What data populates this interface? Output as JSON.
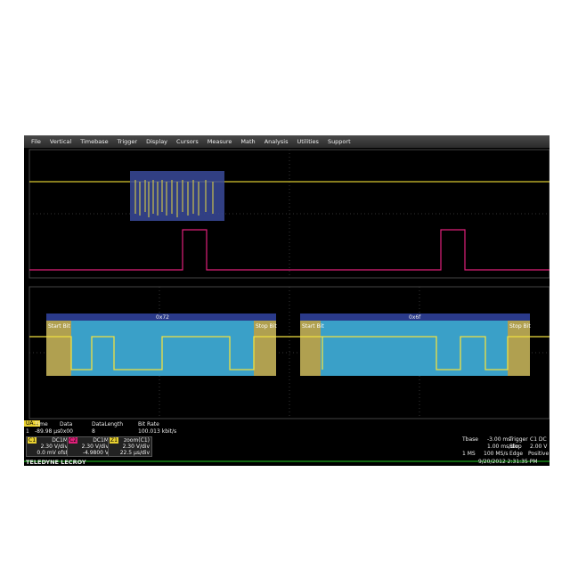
{
  "menu": [
    "File",
    "Vertical",
    "Timebase",
    "Trigger",
    "Display",
    "Cursors",
    "Measure",
    "Math",
    "Analysis",
    "Utilities",
    "Support"
  ],
  "decode": {
    "bytes": [
      "0x72",
      "0x6f"
    ],
    "start_bit": "Start Bit",
    "stop_bit": "Stop Bit"
  },
  "table": {
    "tab": "UA...",
    "headers": [
      "Time",
      "Data",
      "DataLength",
      "Bit Rate"
    ],
    "row": [
      "1",
      "-89.98 µs",
      "0x00",
      "8",
      "100.013 kbit/s"
    ]
  },
  "channels": [
    {
      "label": "C1",
      "coupling": "DC1M",
      "scale": "2.30 V/div",
      "offset": "0.0 mV ofst"
    },
    {
      "label": "C2",
      "coupling": "DC1M",
      "scale": "2.30 V/div",
      "offset": "-4.9800 V"
    },
    {
      "label": "Z1",
      "coupling": "zoom(C1)",
      "scale": "2.30 V/div",
      "offset": "22.5 µs/div"
    }
  ],
  "timebase": {
    "label": "Tbase",
    "delay": "-3.00 ms",
    "rate": "1.00 ms/div",
    "samples": "1 MS",
    "sample_rate": "100 MS/s"
  },
  "trigger": {
    "label": "Trigger",
    "source": "C1 DC",
    "mode": "Stop",
    "level": "2.00 V",
    "type": "Edge",
    "slope": "Positive"
  },
  "brand": "TELEDYNE LECROY",
  "timestamp": "9/20/2012 2:31:35 PM"
}
